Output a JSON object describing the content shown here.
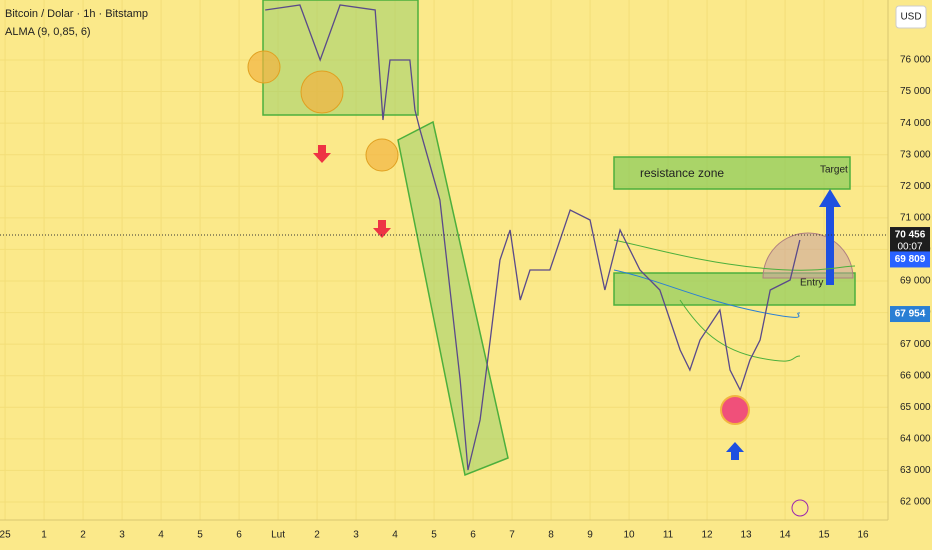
{
  "chart_data": {
    "type": "line",
    "title": "Bitcoin / Dolar · 1h · Bitstamp",
    "subtitle": "ALMA (9, 0,85, 6)",
    "currency": "USD",
    "color": "#5a4a8a",
    "x": [
      6.67,
      7.56,
      8.08,
      8.59,
      9.49,
      9.69,
      9.87,
      10.38,
      10.51,
      10.64,
      11.15,
      11.67,
      11.87,
      12.18,
      12.44,
      12.69,
      12.95,
      13.21,
      13.46,
      13.97,
      14.49,
      15.0,
      15.38,
      15.77,
      16.28,
      16.79,
      17.31,
      17.56,
      17.82,
      18.33,
      18.59,
      18.85,
      19.1,
      19.36,
      19.62,
      20.13,
      20.38
    ],
    "values": [
      77584,
      77742,
      76000,
      77742,
      77584,
      74099,
      76000,
      76000,
      74416,
      73783,
      71565,
      65864,
      63013,
      64597,
      67131,
      69665,
      70615,
      68398,
      69348,
      69348,
      71249,
      70932,
      68715,
      70615,
      69348,
      68715,
      66814,
      66181,
      67131,
      68081,
      66181,
      65547,
      66497,
      67131,
      68715,
      69031,
      70298
    ],
    "xlim": [
      -0.13,
      22.64
    ],
    "ylim": [
      61430,
      77900
    ],
    "xticks": [
      {
        "value": 0,
        "label": "25"
      },
      1,
      2,
      3,
      4,
      5,
      6,
      {
        "value": 7,
        "label": "Lut"
      },
      {
        "value": 8,
        "label": "2"
      },
      {
        "value": 9,
        "label": "3"
      },
      {
        "value": 10,
        "label": "4"
      },
      {
        "value": 11,
        "label": "5"
      },
      {
        "value": 12,
        "label": "6"
      },
      {
        "value": 13,
        "label": "7"
      },
      {
        "value": 14,
        "label": "8"
      },
      {
        "value": 15,
        "label": "9"
      },
      {
        "value": 16,
        "label": "10"
      },
      {
        "value": 17,
        "label": "11"
      },
      {
        "value": 18,
        "label": "12"
      },
      {
        "value": 19,
        "label": "13"
      },
      {
        "value": 20,
        "label": "14"
      },
      {
        "value": 21,
        "label": "15"
      },
      {
        "value": 22,
        "label": "16"
      }
    ],
    "yticks": [
      {
        "value": 62000,
        "label": "62 000"
      },
      {
        "value": 63000,
        "label": "63 000"
      },
      {
        "value": 64000,
        "label": "64 000"
      },
      {
        "value": 65000,
        "label": "65 000"
      },
      {
        "value": 66000,
        "label": "66 000"
      },
      {
        "value": 67000,
        "label": "67 000"
      },
      {
        "value": 68000,
        "label": "68 000"
      },
      {
        "value": 69000,
        "label": "69 000"
      },
      {
        "value": 70000,
        "label": "70 000"
      },
      {
        "value": 71000,
        "label": "71 000"
      },
      {
        "value": 72000,
        "label": "72 000"
      },
      {
        "value": 73000,
        "label": "73 000"
      },
      {
        "value": 74000,
        "label": "74 000"
      },
      {
        "value": 75000,
        "label": "75 000"
      },
      {
        "value": 76000,
        "label": "76 000"
      }
    ],
    "price_tags": [
      {
        "value": 70456,
        "label": "70 456",
        "color": "#1e1e1e"
      },
      {
        "value": 69809,
        "label": "69 809",
        "color": "#2962ff"
      },
      {
        "value": 67954,
        "label": "67 954",
        "color": "#2a7fd4"
      }
    ],
    "countdown": "00:07",
    "annotations": {
      "zone": "resistance zone",
      "target": "Target",
      "entry": "Entry"
    }
  }
}
